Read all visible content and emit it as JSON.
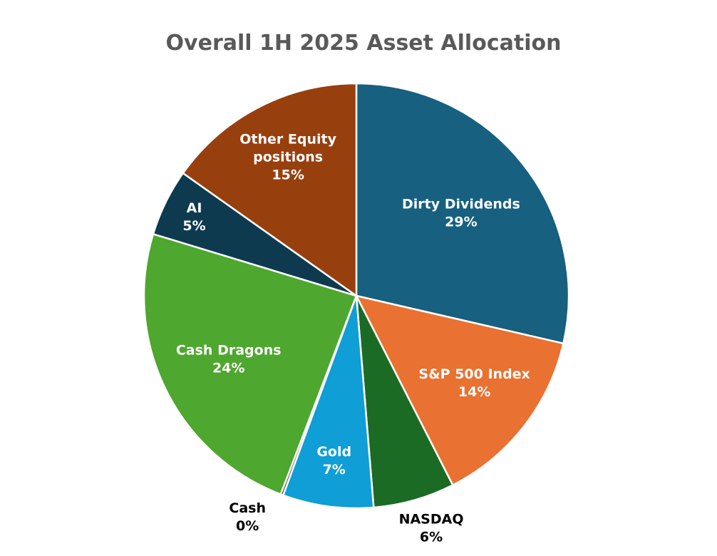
{
  "chart_data": {
    "type": "pie",
    "title": "Overall 1H 2025 Asset Allocation",
    "slices": [
      {
        "name": "Dirty Dividends",
        "label_lines": [
          "Dirty Dividends",
          "29%"
        ],
        "value": 28.6,
        "color": "#17607F",
        "label_color": "#FFFFFF",
        "label_position": "inside"
      },
      {
        "name": "S&P 500 Index",
        "label_lines": [
          "S&P 500 Index",
          "14%"
        ],
        "value": 13.9,
        "color": "#E97131",
        "label_color": "#FFFFFF",
        "label_position": "inside"
      },
      {
        "name": "NASDAQ",
        "label_lines": [
          "NASDAQ",
          "6%"
        ],
        "value": 6.2,
        "color": "#1C6B25",
        "label_color": "#000000",
        "label_position": "outside"
      },
      {
        "name": "Gold",
        "label_lines": [
          "Gold",
          "7%"
        ],
        "value": 6.9,
        "color": "#0F9ED5",
        "label_color": "#FFFFFF",
        "label_position": "inside"
      },
      {
        "name": "Cash",
        "label_lines": [
          "Cash",
          "0%"
        ],
        "value": 0.2,
        "color": "#3A3A3A",
        "label_color": "#000000",
        "label_position": "outside"
      },
      {
        "name": "Cash Dragons",
        "label_lines": [
          "Cash Dragons",
          "24%"
        ],
        "value": 23.9,
        "color": "#4EA72E",
        "label_color": "#FFFFFF",
        "label_position": "inside"
      },
      {
        "name": "AI",
        "label_lines": [
          "AI",
          "5%"
        ],
        "value": 5.1,
        "color": "#0E3A4F",
        "label_color": "#FFFFFF",
        "label_position": "inside"
      },
      {
        "name": "Other Equity positions",
        "label_lines": [
          "Other Equity",
          "positions",
          "15%"
        ],
        "value": 15.2,
        "color": "#983F0E",
        "label_color": "#FFFFFF",
        "label_position": "inside"
      }
    ],
    "legend": "none",
    "start_angle_deg": 0,
    "direction": "clockwise"
  }
}
